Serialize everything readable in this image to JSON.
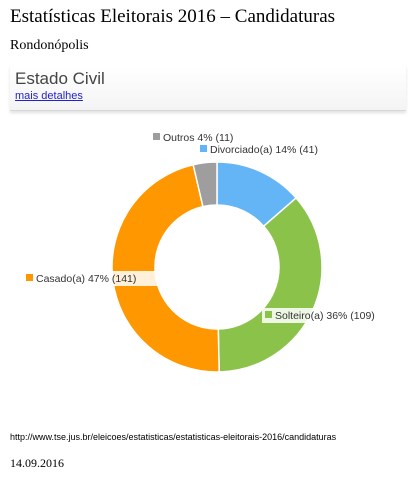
{
  "page": {
    "title": "Estatísticas Eleitorais 2016 – Candidaturas",
    "subtitle": "Rondonópolis"
  },
  "panel": {
    "title": "Estado Civil",
    "link": "mais detalhes"
  },
  "footer": {
    "source_url": "http://www.tse.jus.br/eleicoes/estatisticas/estatisticas-eleitorais-2016/candidaturas",
    "date": "14.09.2016"
  },
  "chart_data": {
    "type": "pie",
    "donut": true,
    "slices": [
      {
        "label": "Divorciado(a) 14% (41)",
        "value": 41,
        "percent": 14,
        "color": "#64b5f6"
      },
      {
        "label": "Solteiro(a) 36% (109)",
        "value": 109,
        "percent": 36,
        "color": "#8bc34a"
      },
      {
        "label": "Casado(a) 47% (141)",
        "value": 141,
        "percent": 47,
        "color": "#ff9800"
      },
      {
        "label": "Outros 4% (11)",
        "value": 11,
        "percent": 4,
        "color": "#9e9e9e"
      }
    ]
  }
}
